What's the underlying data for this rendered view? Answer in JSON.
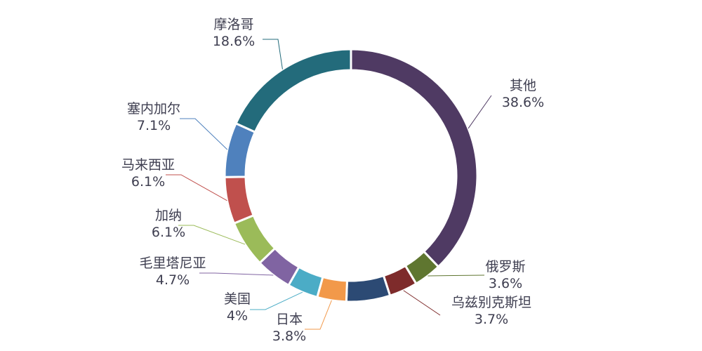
{
  "chart_data": {
    "type": "pie",
    "style": "donut",
    "slices": [
      {
        "label": "其他",
        "pct_label": "38.6%",
        "value": 38.6,
        "color": "#4f3a63"
      },
      {
        "label": "俄罗斯",
        "pct_label": "3.6%",
        "value": 3.6,
        "color": "#5f7630"
      },
      {
        "label": "乌兹别克斯坦",
        "pct_label": "3.7%",
        "value": 3.7,
        "color": "#7e2b2b"
      },
      {
        "label": "",
        "pct_label": "",
        "value": 5.7,
        "color": "#2c4a74"
      },
      {
        "label": "日本",
        "pct_label": "3.8%",
        "value": 3.8,
        "color": "#f2994a"
      },
      {
        "label": "美国",
        "pct_label": "4%",
        "value": 4.0,
        "color": "#4bacc6"
      },
      {
        "label": "毛里塔尼亚",
        "pct_label": "4.7%",
        "value": 4.7,
        "color": "#8064a2"
      },
      {
        "label": "加纳",
        "pct_label": "6.1%",
        "value": 6.1,
        "color": "#9bbb59"
      },
      {
        "label": "马来西亚",
        "pct_label": "6.1%",
        "value": 6.1,
        "color": "#c0504d"
      },
      {
        "label": "塞内加尔",
        "pct_label": "7.1%",
        "value": 7.1,
        "color": "#4f81bd"
      },
      {
        "label": "摩洛哥",
        "pct_label": "18.6%",
        "value": 18.6,
        "color": "#236b7b"
      }
    ]
  }
}
